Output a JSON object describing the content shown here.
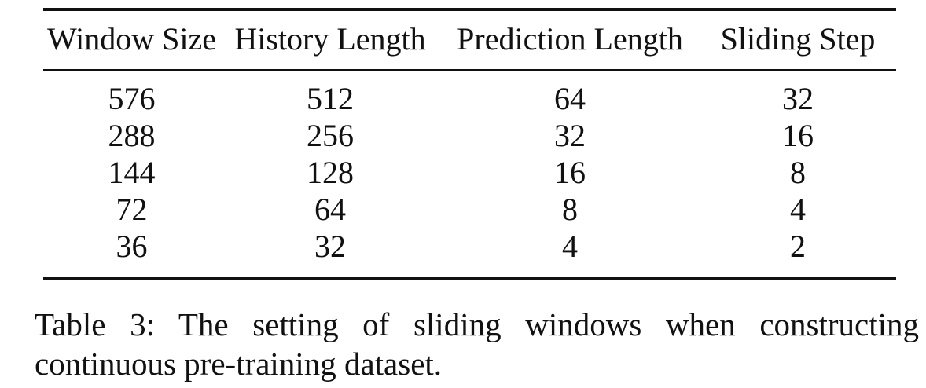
{
  "table": {
    "headers": [
      "Window Size",
      "History Length",
      "Prediction Length",
      "Sliding Step"
    ],
    "rows": [
      [
        "576",
        "512",
        "64",
        "32"
      ],
      [
        "288",
        "256",
        "32",
        "16"
      ],
      [
        "144",
        "128",
        "16",
        "8"
      ],
      [
        "72",
        "64",
        "8",
        "4"
      ],
      [
        "36",
        "32",
        "4",
        "2"
      ]
    ]
  },
  "caption": {
    "label": "Table 3:",
    "text": "The setting of sliding windows when constructing continuous pre-training dataset."
  }
}
